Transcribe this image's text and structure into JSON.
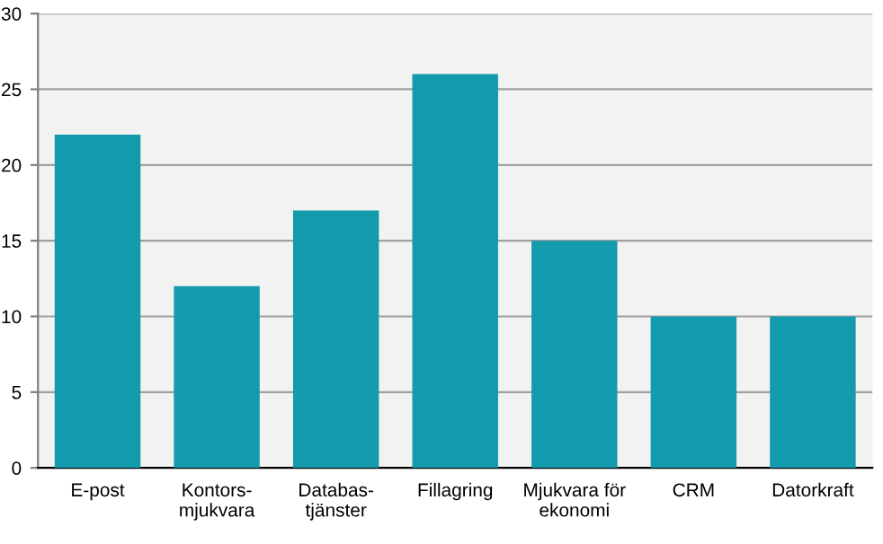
{
  "chart_data": {
    "type": "bar",
    "categories": [
      "E-post",
      "Kontors-\nmjukvara",
      "Databas-\ntjänster",
      "Fillagring",
      "Mjukvara för\nekonomi",
      "CRM",
      "Datorkraft"
    ],
    "values": [
      22,
      12,
      17,
      26,
      15,
      10,
      10
    ],
    "color": "#149aad",
    "ylim": [
      0,
      30
    ],
    "yticks": [
      0,
      5,
      10,
      15,
      20,
      25,
      30
    ],
    "grid": "y"
  }
}
